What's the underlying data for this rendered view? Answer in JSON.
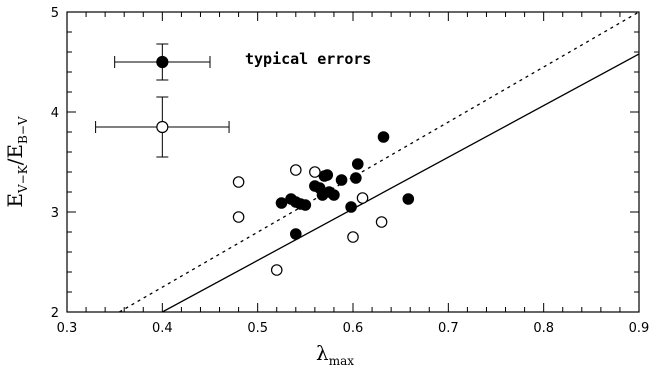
{
  "chart_data": {
    "type": "scatter",
    "xlim": [
      0.3,
      0.9
    ],
    "ylim": [
      2,
      5
    ],
    "xticks": [
      "0.3",
      "0.4",
      "0.5",
      "0.6",
      "0.7",
      "0.8",
      "0.9"
    ],
    "yticks": [
      "2",
      "3",
      "4",
      "5"
    ],
    "xlabel": {
      "main": "λ",
      "sub": "max"
    },
    "ylabel": {
      "main1": "E",
      "sub1": "V−K",
      "slash": "/",
      "main2": "E",
      "sub2": "B−V"
    },
    "annotation": "typical errors",
    "series": [
      {
        "marker": "filled-circle",
        "points": [
          [
            0.525,
            3.09
          ],
          [
            0.535,
            3.13
          ],
          [
            0.54,
            3.1
          ],
          [
            0.545,
            3.08
          ],
          [
            0.55,
            3.07
          ],
          [
            0.56,
            3.26
          ],
          [
            0.565,
            3.24
          ],
          [
            0.568,
            3.17
          ],
          [
            0.57,
            3.36
          ],
          [
            0.573,
            3.37
          ],
          [
            0.575,
            3.2
          ],
          [
            0.58,
            3.17
          ],
          [
            0.588,
            3.32
          ],
          [
            0.598,
            3.05
          ],
          [
            0.603,
            3.34
          ],
          [
            0.605,
            3.48
          ],
          [
            0.632,
            3.75
          ],
          [
            0.658,
            3.13
          ],
          [
            0.54,
            2.78
          ]
        ]
      },
      {
        "marker": "open-circle",
        "points": [
          [
            0.48,
            3.3
          ],
          [
            0.48,
            2.95
          ],
          [
            0.52,
            2.42
          ],
          [
            0.54,
            3.42
          ],
          [
            0.56,
            3.4
          ],
          [
            0.6,
            2.75
          ],
          [
            0.61,
            3.14
          ],
          [
            0.63,
            2.9
          ]
        ]
      }
    ],
    "error_bars": [
      {
        "marker": "filled-circle",
        "x": 0.4,
        "y": 4.5,
        "xerr": 0.05,
        "yerr": 0.18
      },
      {
        "marker": "open-circle",
        "x": 0.4,
        "y": 3.85,
        "xerr": 0.07,
        "yerr": 0.3
      }
    ],
    "lines": [
      {
        "style": "solid",
        "points": [
          [
            0.4,
            2.0
          ],
          [
            0.9,
            4.58
          ]
        ]
      },
      {
        "style": "dashed",
        "points": [
          [
            0.355,
            2.0
          ],
          [
            0.9,
            5.0
          ]
        ]
      }
    ]
  }
}
